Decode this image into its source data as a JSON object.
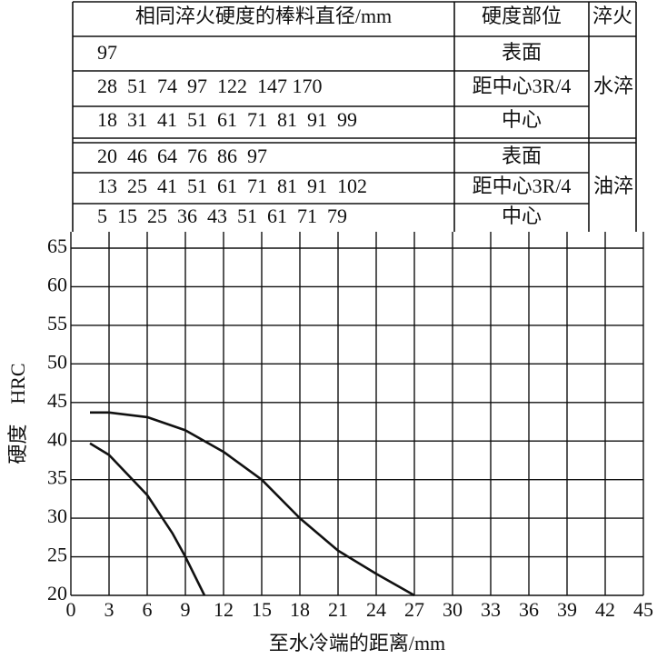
{
  "table": {
    "header": [
      "相同淬火硬度的棒料直径/mm",
      "硬度部位",
      "淬火"
    ],
    "groups": [
      {
        "quench": "水淬",
        "rows": [
          {
            "diameters": "97",
            "position": "表面"
          },
          {
            "diameters": "28  51  74  97  122  147 170",
            "position": "距中心3R/4"
          },
          {
            "diameters": "18  31  41  51  61  71  81  91  99",
            "position": "中心"
          }
        ]
      },
      {
        "quench": "油淬",
        "rows": [
          {
            "diameters": "20  46  64  76  86  97",
            "position": "表面"
          },
          {
            "diameters": "13  25  41  51  61  71  81  91  102",
            "position": "距中心3R/4"
          },
          {
            "diameters": "5  15  25  36  43  51  61  71  79",
            "position": "中心"
          }
        ]
      }
    ]
  },
  "chart_data": {
    "type": "line",
    "x_label": "至水冷端的距离/mm",
    "y_label": "硬度　HRC",
    "xlim": [
      0,
      45
    ],
    "xticks": [
      0,
      3,
      6,
      9,
      12,
      15,
      18,
      21,
      24,
      27,
      30,
      33,
      36,
      39,
      42,
      45
    ],
    "ylim": [
      20,
      65
    ],
    "yticks": [
      20,
      25,
      30,
      35,
      40,
      45,
      50,
      55,
      60,
      65
    ],
    "grid": true,
    "series": [
      {
        "color": "#111111",
        "x": [
          1.5,
          3,
          6,
          9,
          12,
          15,
          18,
          21,
          24,
          27
        ],
        "values": [
          43.7,
          43.7,
          43.1,
          41.4,
          38.6,
          35,
          30,
          25.8,
          22.8,
          20
        ]
      },
      {
        "color": "#111111",
        "x": [
          1.5,
          3,
          6,
          8,
          9,
          10.5
        ],
        "values": [
          39.7,
          38.2,
          33,
          28,
          25,
          20
        ]
      }
    ]
  }
}
